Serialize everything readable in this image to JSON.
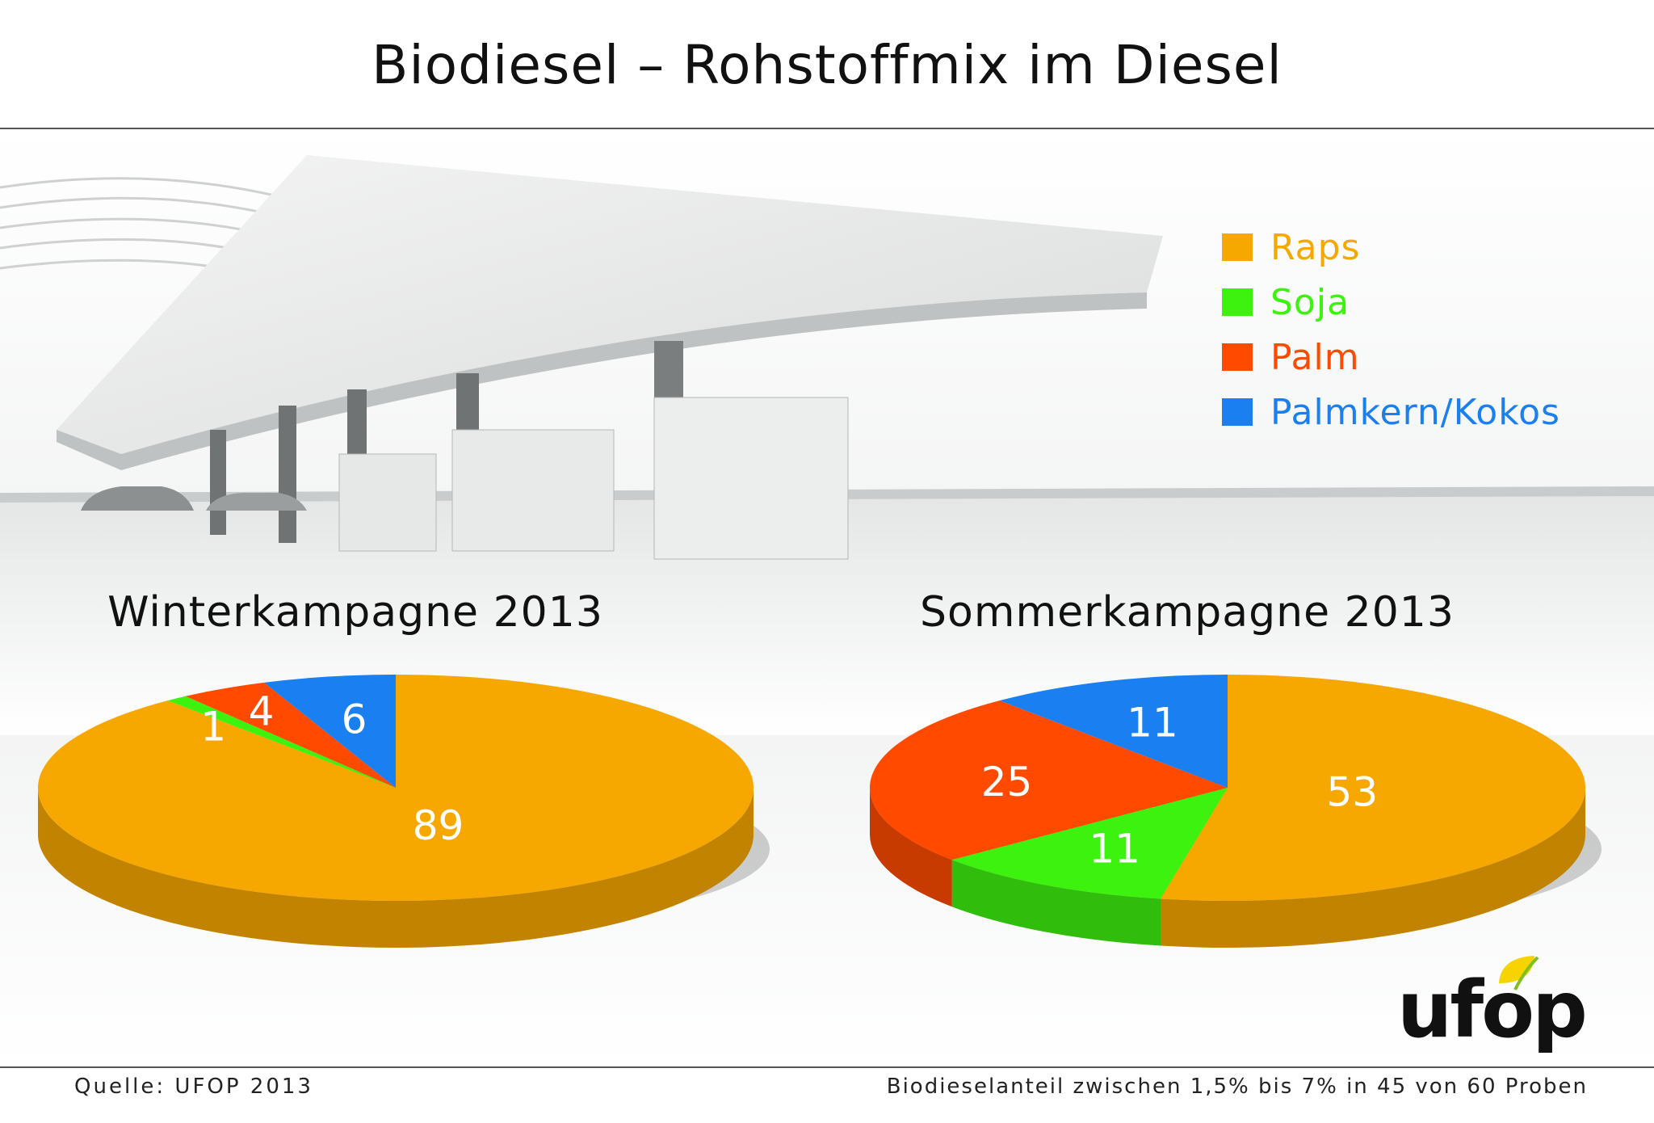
{
  "title": "Biodiesel – Rohstoffmix im Diesel",
  "legend": [
    {
      "label": "Raps",
      "color": "#f7a800"
    },
    {
      "label": "Soja",
      "color": "#3df20f"
    },
    {
      "label": "Palm",
      "color": "#ff4a00"
    },
    {
      "label": "Palmkern/Kokos",
      "color": "#1a7ff0"
    }
  ],
  "chart_data": [
    {
      "type": "pie",
      "title": "Winterkampagne 2013",
      "categories": [
        "Raps",
        "Soja",
        "Palm",
        "Palmkern/Kokos"
      ],
      "values": [
        89,
        1,
        4,
        6
      ],
      "labels": [
        "89",
        "1",
        "4",
        "6"
      ],
      "colors": [
        "#f7a800",
        "#3df20f",
        "#ff4a00",
        "#1a7ff0"
      ]
    },
    {
      "type": "pie",
      "title": "Sommerkampagne 2013",
      "categories": [
        "Raps",
        "Soja",
        "Palm",
        "Palmkern/Kokos"
      ],
      "values": [
        53,
        11,
        25,
        11
      ],
      "labels": [
        "53",
        "11",
        "25",
        "11"
      ],
      "colors": [
        "#f7a800",
        "#3df20f",
        "#ff4a00",
        "#1a7ff0"
      ]
    }
  ],
  "footer": {
    "source": "Quelle: UFOP 2013",
    "note": "Biodieselanteil zwischen 1,5% bis 7% in 45 von 60 Proben"
  },
  "logo": {
    "text": "ufop"
  }
}
